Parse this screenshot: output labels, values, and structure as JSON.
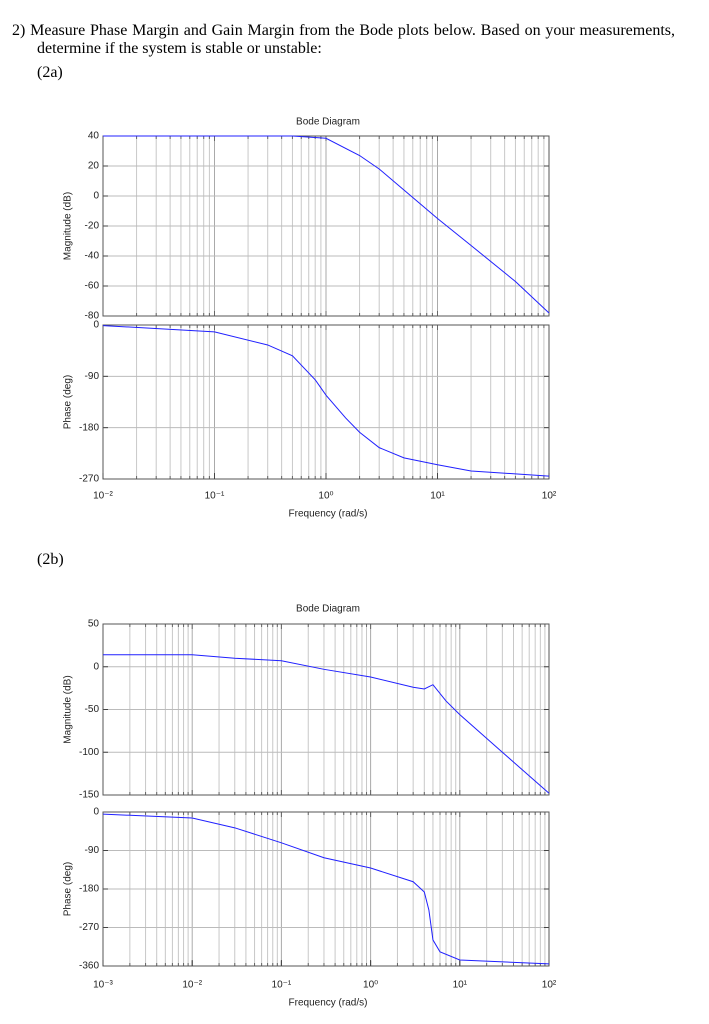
{
  "question": "2) Measure Phase Margin and Gain Margin from the Bode plots below. Based on your measurements, determine if the system is stable or unstable:",
  "parts": [
    {
      "label": "(2a)"
    },
    {
      "label": "(2b)"
    }
  ],
  "chart_data": [
    {
      "type": "line",
      "title": "Bode Diagram",
      "ylabel": "Magnitude (dB)",
      "xscale": "log",
      "grid": true,
      "color": "#2020ff",
      "x": [
        0.01,
        0.1,
        0.5,
        1,
        2,
        3,
        5,
        10,
        20,
        50,
        100
      ],
      "values": [
        40,
        40,
        40,
        38.5,
        27,
        18,
        4,
        -15,
        -33,
        -57,
        -78
      ],
      "xlim": [
        0.01,
        100
      ],
      "ylim": [
        -80,
        40
      ],
      "yticks": [
        -80,
        -60,
        -40,
        -20,
        0,
        20,
        40
      ]
    },
    {
      "type": "line",
      "ylabel": "Phase (deg)",
      "xlabel": "Frequency (rad/s)",
      "xscale": "log",
      "grid": true,
      "color": "#2020ff",
      "x": [
        0.01,
        0.1,
        0.3,
        0.5,
        0.8,
        1,
        1.5,
        2,
        3,
        5,
        10,
        20,
        50,
        100
      ],
      "values": [
        -1,
        -12,
        -35,
        -54,
        -96,
        -123,
        -163,
        -188,
        -215,
        -233,
        -245,
        -256,
        -261,
        -265
      ],
      "xlim": [
        0.01,
        100
      ],
      "ylim": [
        -270,
        0
      ],
      "yticks": [
        -270,
        -180,
        -90,
        0
      ],
      "xticks": [
        {
          "value": 0.01,
          "label": "10⁻²"
        },
        {
          "value": 0.1,
          "label": "10⁻¹"
        },
        {
          "value": 1,
          "label": "10⁰"
        },
        {
          "value": 10,
          "label": "10¹"
        },
        {
          "value": 100,
          "label": "10²"
        }
      ]
    },
    {
      "type": "line",
      "title": "Bode Diagram",
      "ylabel": "Magnitude (dB)",
      "xscale": "log",
      "grid": true,
      "color": "#2020ff",
      "x": [
        0.001,
        0.01,
        0.03,
        0.1,
        0.3,
        1,
        3,
        4,
        5,
        7,
        10,
        30,
        100
      ],
      "values": [
        14,
        14,
        10,
        7,
        -3,
        -12,
        -24,
        -26,
        -21,
        -40,
        -56,
        -100,
        -148
      ],
      "xlim": [
        0.001,
        100
      ],
      "ylim": [
        -150,
        50
      ],
      "yticks": [
        -150,
        -100,
        -50,
        0,
        50
      ]
    },
    {
      "type": "line",
      "ylabel": "Phase (deg)",
      "xlabel": "Frequency (rad/s)",
      "xscale": "log",
      "grid": true,
      "color": "#2020ff",
      "x": [
        0.001,
        0.01,
        0.03,
        0.1,
        0.3,
        1,
        3,
        4,
        4.5,
        5,
        6,
        10,
        100
      ],
      "values": [
        -5,
        -14,
        -37,
        -72,
        -107,
        -131,
        -163,
        -187,
        -229,
        -299,
        -327,
        -346,
        -355
      ],
      "xlim": [
        0.001,
        100
      ],
      "ylim": [
        -360,
        0
      ],
      "yticks": [
        -360,
        -270,
        -180,
        -90,
        0
      ],
      "xticks": [
        {
          "value": 0.001,
          "label": "10⁻³"
        },
        {
          "value": 0.01,
          "label": "10⁻²"
        },
        {
          "value": 0.1,
          "label": "10⁻¹"
        },
        {
          "value": 1,
          "label": "10⁰"
        },
        {
          "value": 10,
          "label": "10¹"
        },
        {
          "value": 100,
          "label": "10²"
        }
      ]
    }
  ]
}
